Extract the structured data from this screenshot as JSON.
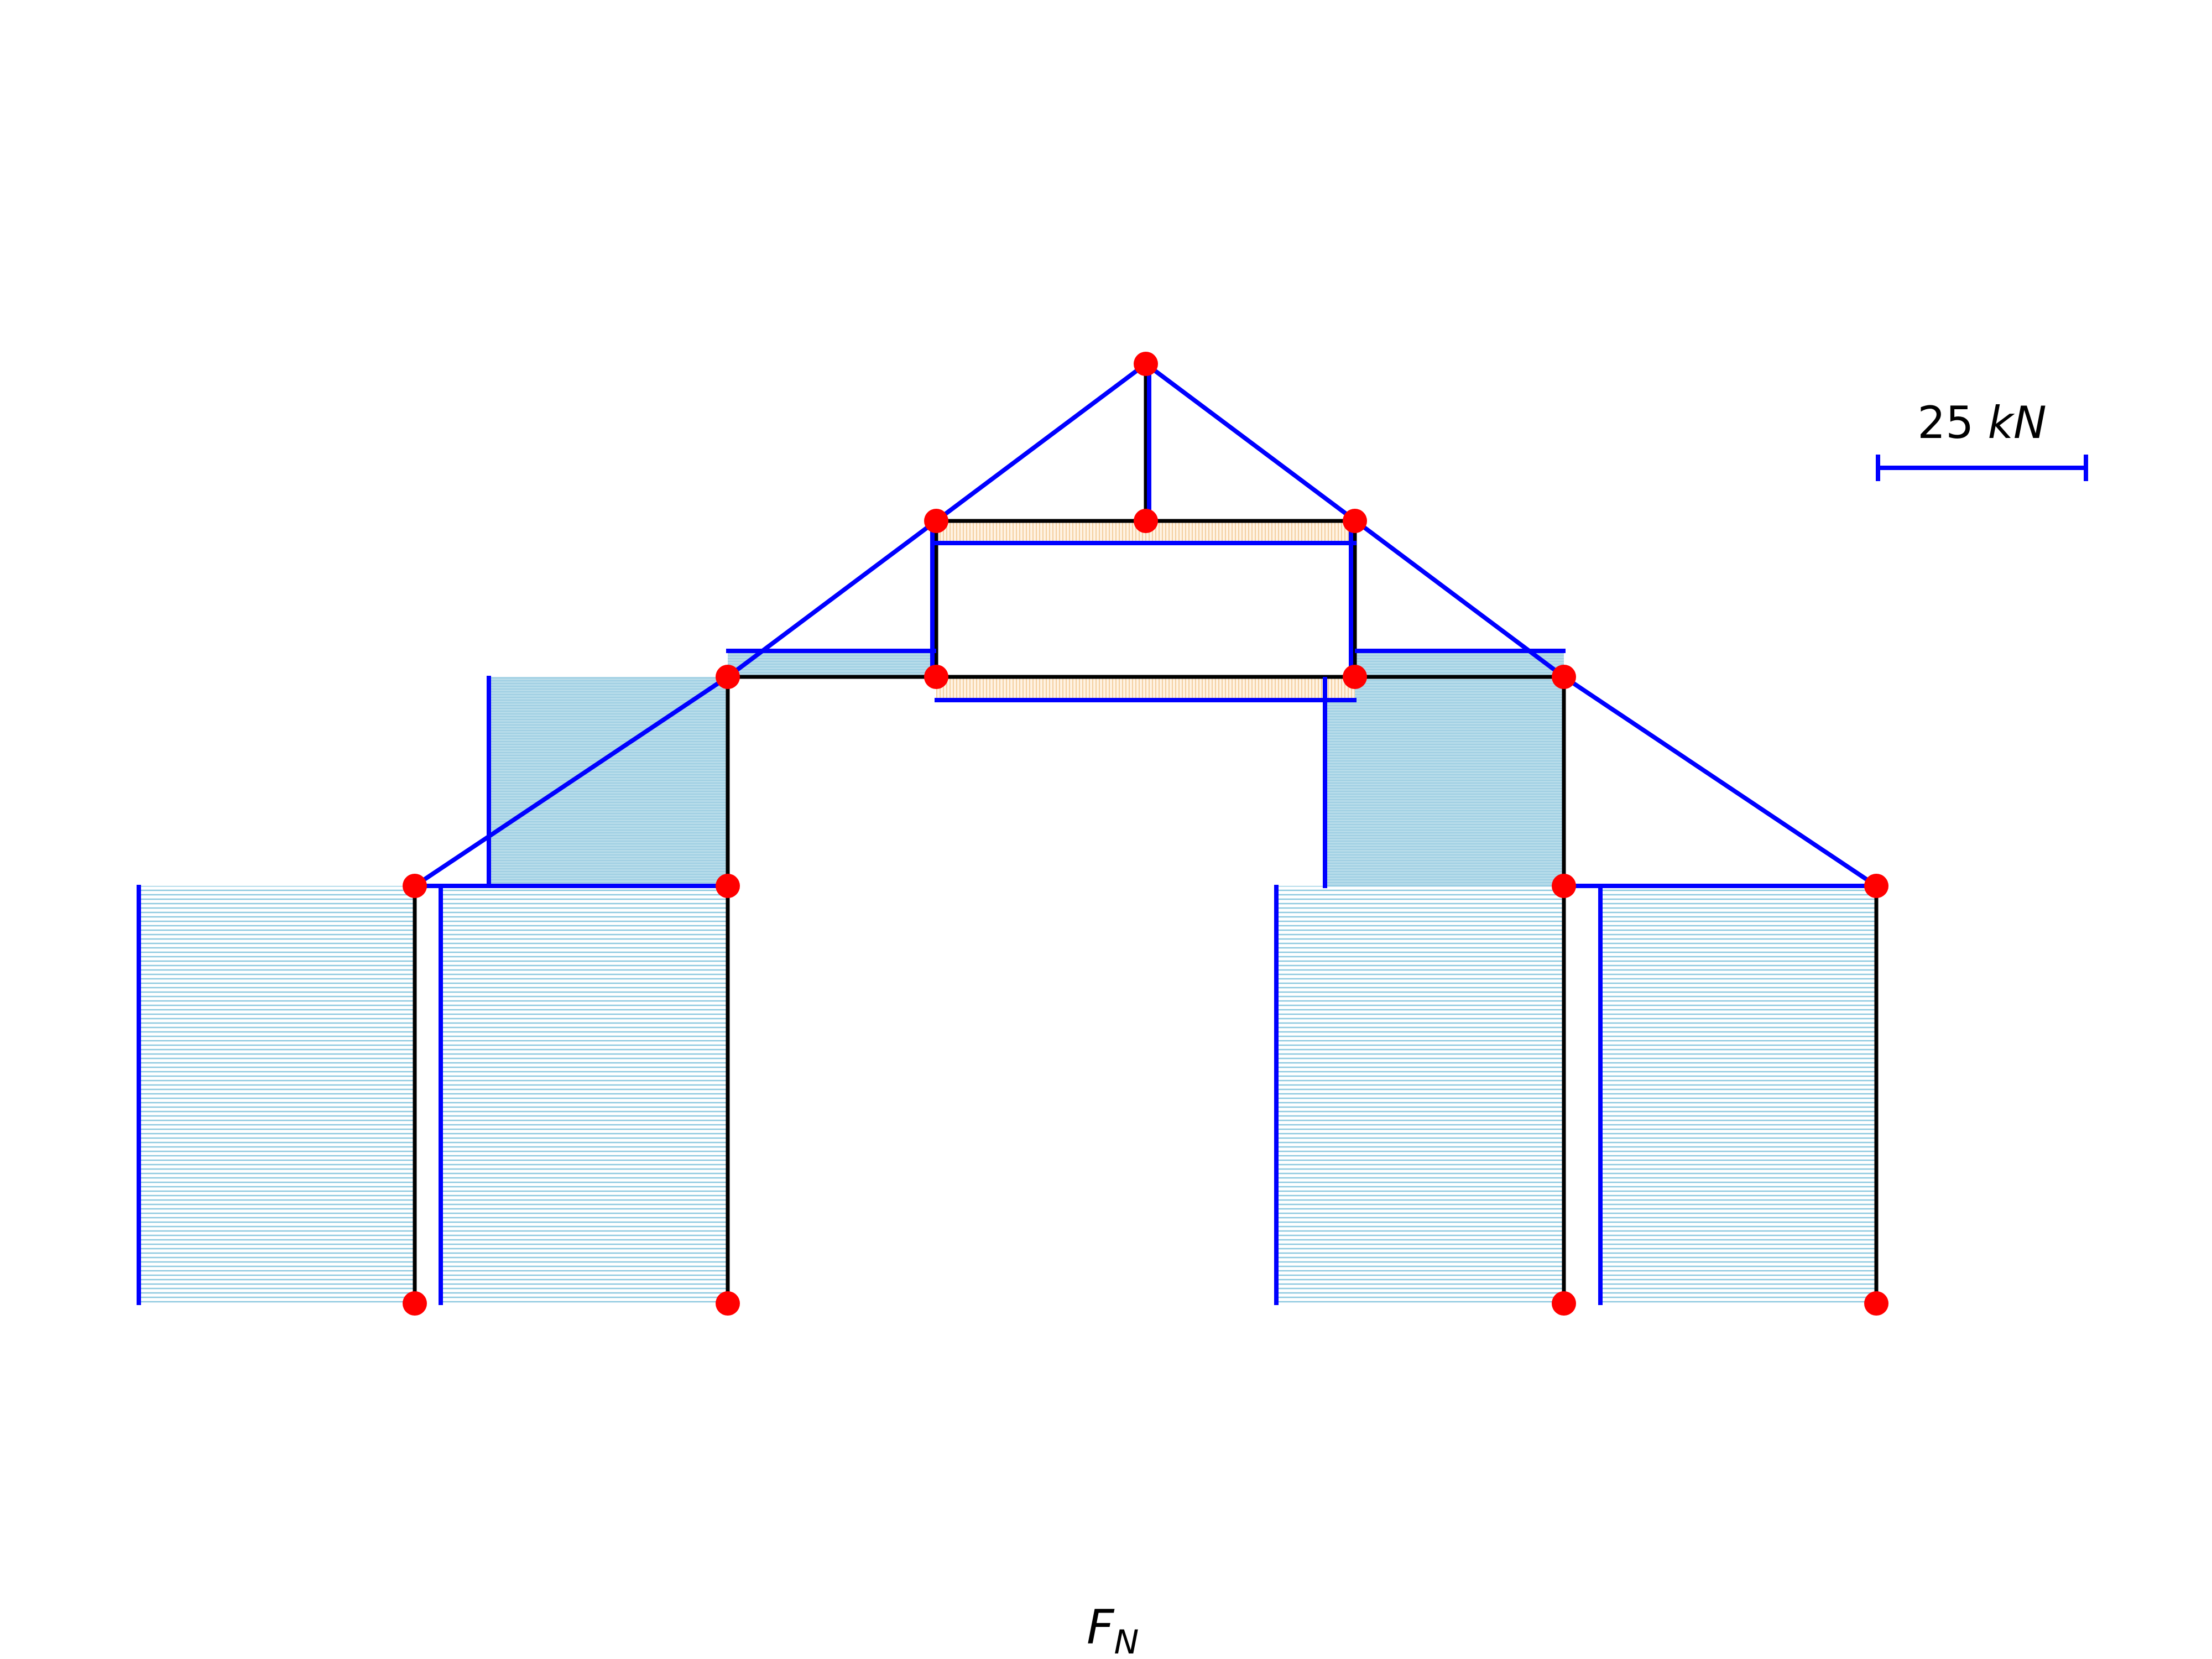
{
  "scale": {
    "value": "25",
    "unit": "kN"
  },
  "title": {
    "main": "F",
    "sub": "N"
  },
  "colors": {
    "member": "#000000",
    "diagram_line": "#0000ff",
    "compression_fill": "#add8e6",
    "tension_fill": "#ffe4c4",
    "node": "#ff0000"
  }
}
